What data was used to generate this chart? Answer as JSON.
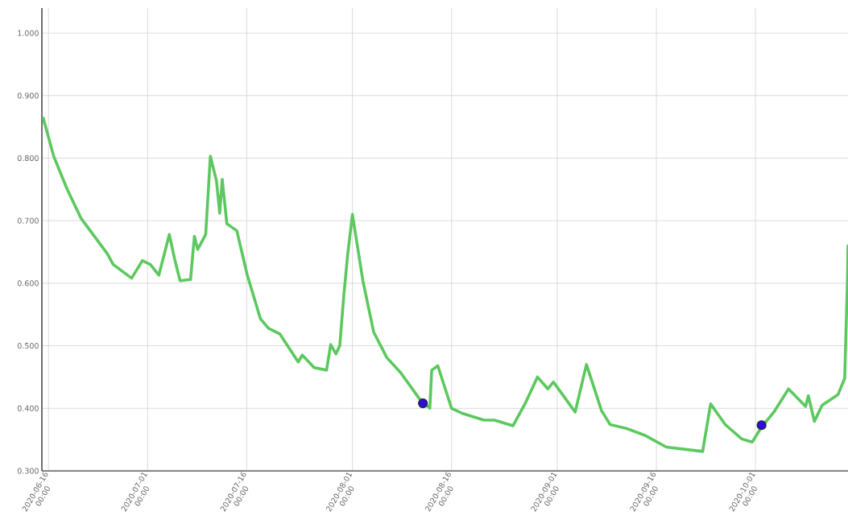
{
  "chart_data": {
    "type": "line",
    "xlim": [
      "2020-06-15T00:00",
      "2020-10-15T00:00"
    ],
    "ylim": [
      0.3,
      1.04
    ],
    "xticks": [
      {
        "value": "2020-06-16",
        "label": "2020-06-16 00:00"
      },
      {
        "value": "2020-07-01",
        "label": "2020-07-01 00:00"
      },
      {
        "value": "2020-07-16",
        "label": "2020-07-16 00:00"
      },
      {
        "value": "2020-08-01",
        "label": "2020-08-01 00:00"
      },
      {
        "value": "2020-08-16",
        "label": "2020-08-16 00:00"
      },
      {
        "value": "2020-09-01",
        "label": "2020-09-01 00:00"
      },
      {
        "value": "2020-09-16",
        "label": "2020-09-16 00:00"
      },
      {
        "value": "2020-10-01",
        "label": "2020-10-01 00:00"
      }
    ],
    "yticks": [
      {
        "value": 0.3,
        "label": "0.300"
      },
      {
        "value": 0.4,
        "label": "0.400"
      },
      {
        "value": 0.5,
        "label": "0.500"
      },
      {
        "value": 0.6,
        "label": "0.600"
      },
      {
        "value": 0.7,
        "label": "0.700"
      },
      {
        "value": 0.8,
        "label": "0.800"
      },
      {
        "value": 0.9,
        "label": "0.900"
      },
      {
        "value": 1.0,
        "label": "1.000"
      }
    ],
    "grid": true,
    "series": [
      {
        "color": "#5cc85f",
        "marker": "none",
        "line_style": "solid",
        "x": [
          "2020-06-15T05:00",
          "2020-06-16T19:00",
          "2020-06-18T19:00",
          "2020-06-20T22:00",
          "2020-06-24T22:00",
          "2020-06-25T19:00",
          "2020-06-28T14:00",
          "2020-06-30T05:00",
          "2020-07-01T10:00",
          "2020-07-02T17:00",
          "2020-07-04T07:00",
          "2020-07-05T02:00",
          "2020-07-05T22:00",
          "2020-07-07T12:00",
          "2020-07-08T02:00",
          "2020-07-08T14:00",
          "2020-07-09T19:00",
          "2020-07-10T12:00",
          "2020-07-11T10:00",
          "2020-07-11T22:00",
          "2020-07-12T07:00",
          "2020-07-13T00:00",
          "2020-07-14T12:00",
          "2020-07-16T02:00",
          "2020-07-18T02:00",
          "2020-07-19T07:00",
          "2020-07-21T00:00",
          "2020-07-23T19:00",
          "2020-07-24T10:00",
          "2020-07-26T05:00",
          "2020-07-28T02:00",
          "2020-07-28T17:00",
          "2020-07-29T12:00",
          "2020-07-30T02:00",
          "2020-07-30T17:00",
          "2020-07-31T07:00",
          "2020-08-01T00:00",
          "2020-08-02T14:00",
          "2020-08-04T05:00",
          "2020-08-06T05:00",
          "2020-08-08T07:00",
          "2020-08-11T02:00",
          "2020-08-12T17:00",
          "2020-08-13T00:00",
          "2020-08-13T22:00",
          "2020-08-16T00:00",
          "2020-08-17T14:00",
          "2020-08-20T22:00",
          "2020-08-22T12:00",
          "2020-08-25T07:00",
          "2020-08-27T05:00",
          "2020-08-29T00:00",
          "2020-08-30T14:00",
          "2020-08-31T10:00",
          "2020-09-03T17:00",
          "2020-09-05T10:00",
          "2020-09-07T17:00",
          "2020-09-09T00:00",
          "2020-09-11T10:00",
          "2020-09-14T05:00",
          "2020-09-17T12:00",
          "2020-09-23T00:00",
          "2020-09-24T05:00",
          "2020-09-26T10:00",
          "2020-09-28T22:00",
          "2020-09-30T12:00",
          "2020-10-01T22:00",
          "2020-10-03T19:00",
          "2020-10-06T00:00",
          "2020-10-08T14:00",
          "2020-10-09T00:00",
          "2020-10-09T22:00",
          "2020-10-11T02:00",
          "2020-10-13T12:00",
          "2020-10-14T12:00",
          "2020-10-14T22:00",
          "2020-10-15T00:00"
        ],
        "values": [
          0.864,
          0.803,
          0.751,
          0.704,
          0.647,
          0.63,
          0.608,
          0.636,
          0.63,
          0.613,
          0.678,
          0.639,
          0.604,
          0.606,
          0.675,
          0.654,
          0.678,
          0.803,
          0.764,
          0.712,
          0.766,
          0.695,
          0.684,
          0.613,
          0.543,
          0.528,
          0.519,
          0.474,
          0.485,
          0.465,
          0.461,
          0.502,
          0.487,
          0.5,
          0.582,
          0.647,
          0.71,
          0.604,
          0.522,
          0.481,
          0.457,
          0.416,
          0.4,
          0.461,
          0.468,
          0.4,
          0.392,
          0.381,
          0.381,
          0.372,
          0.409,
          0.45,
          0.431,
          0.442,
          0.394,
          0.47,
          0.396,
          0.374,
          0.368,
          0.357,
          0.338,
          0.331,
          0.407,
          0.374,
          0.351,
          0.346,
          0.37,
          0.394,
          0.431,
          0.403,
          0.42,
          0.379,
          0.405,
          0.422,
          0.448,
          0.604,
          0.66
        ]
      },
      {
        "type": "scatter",
        "color": "#2b0fd6",
        "marker": "circle",
        "x": [
          "2020-08-11T16:00",
          "2020-10-01T22:00"
        ],
        "values": [
          0.408,
          0.373
        ]
      }
    ]
  }
}
